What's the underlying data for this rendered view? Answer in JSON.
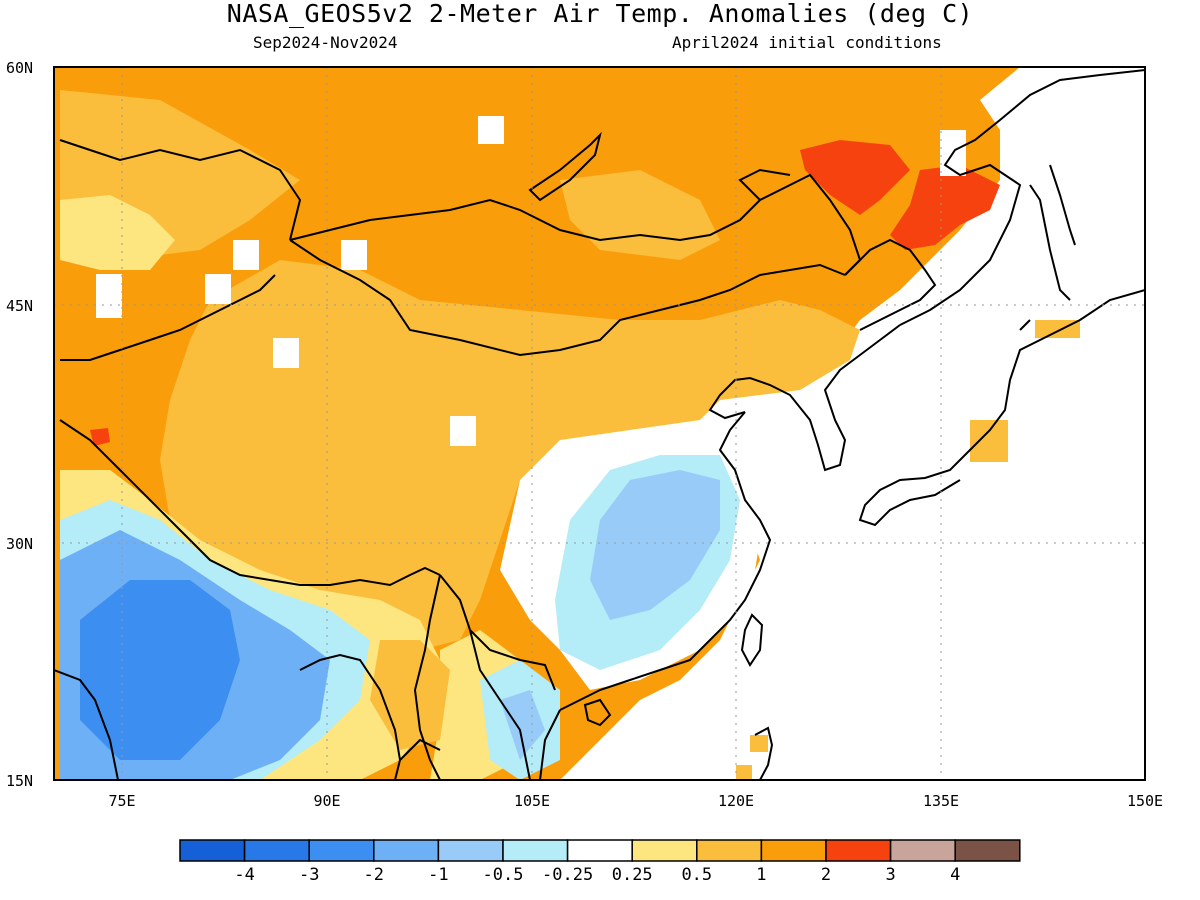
{
  "header": {
    "title": "NASA_GEOS5v2 2-Meter Air Temp. Anomalies (deg C)",
    "period": "Sep2024-Nov2024",
    "init": "April2024 initial conditions"
  },
  "axes": {
    "y_ticks": [
      "60N",
      "45N",
      "30N",
      "15N"
    ],
    "x_ticks": [
      "75E",
      "90E",
      "105E",
      "120E",
      "135E",
      "150E"
    ]
  },
  "colorbar": {
    "labels": [
      "-4",
      "-3",
      "-2",
      "-1",
      "-0.5",
      "-0.25",
      "0.25",
      "0.5",
      "1",
      "2",
      "3",
      "4"
    ],
    "colors": [
      "#1560d6",
      "#2878e8",
      "#3c8ff0",
      "#6eb0f5",
      "#99cbf8",
      "#b4ecf7",
      "#ffffff",
      "#fde680",
      "#fbbd3c",
      "#f99d0a",
      "#f6420f",
      "#c8a49a",
      "#7a5246"
    ]
  },
  "palette": {
    "orange": "#f99d0a",
    "light_orange": "#fbbd3c",
    "yellow": "#fde680",
    "red": "#f6420f",
    "cyan": "#b4ecf7",
    "light_blue": "#99cbf8",
    "mid_blue": "#6eb0f5",
    "blue": "#3c8ff0"
  }
}
